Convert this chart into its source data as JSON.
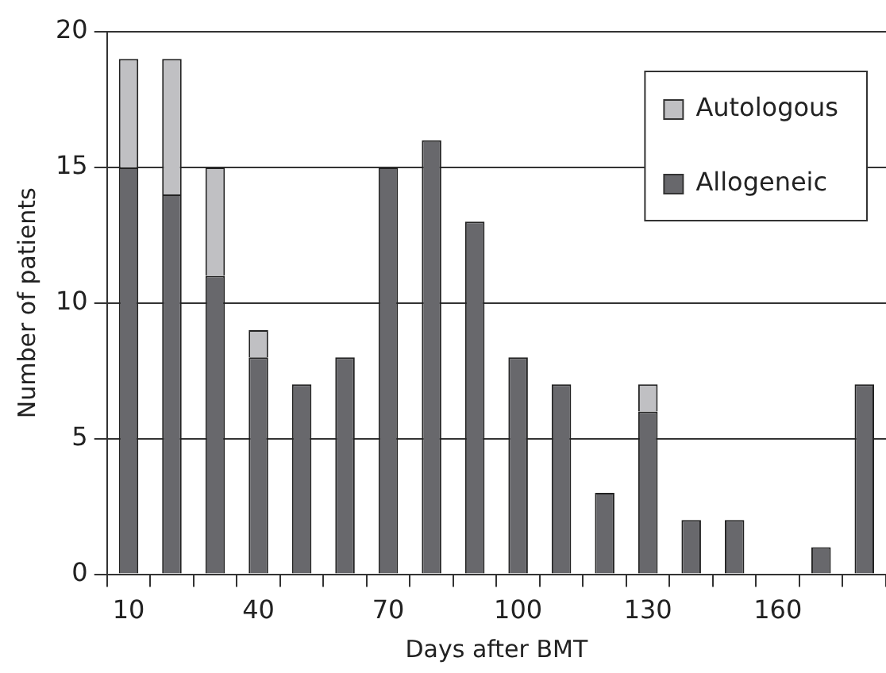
{
  "chart_data": {
    "type": "bar",
    "stacked": true,
    "xlabel": "Days after BMT",
    "ylabel": "Number of patients",
    "categories": [
      "10",
      null,
      null,
      "40",
      null,
      null,
      "70",
      null,
      null,
      "100",
      null,
      null,
      "130",
      null,
      null,
      "160",
      null,
      null
    ],
    "series": [
      {
        "name": "Allogeneic",
        "color": "#68686c",
        "values": [
          15,
          14,
          11,
          8,
          7,
          8,
          15,
          16,
          13,
          8,
          7,
          3,
          6,
          2,
          2,
          0,
          1,
          7
        ]
      },
      {
        "name": "Autologous",
        "color": "#c0c0c3",
        "values": [
          4,
          5,
          4,
          1,
          0,
          0,
          0,
          0,
          0,
          0,
          0,
          0,
          1,
          0,
          0,
          0,
          0,
          0
        ]
      }
    ],
    "ylim": [
      0,
      20
    ],
    "yticks": [
      0,
      5,
      10,
      15,
      20
    ],
    "grid": "y",
    "legend": "top right"
  }
}
